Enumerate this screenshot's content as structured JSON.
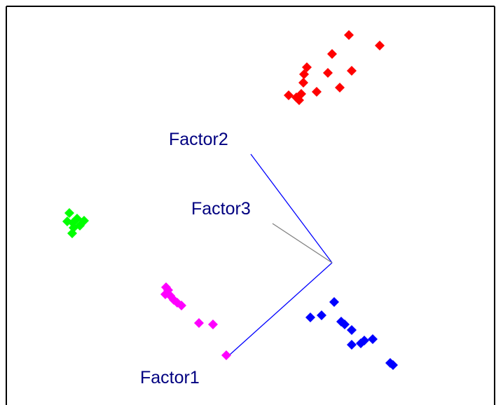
{
  "chart_data": {
    "type": "scatter",
    "title": "",
    "projection": "3D factor-space scatter (orthographic view)",
    "origin_label": "",
    "axes": [
      {
        "name": "Factor1",
        "color": "#0000ff",
        "label_color": "#000080"
      },
      {
        "name": "Factor2",
        "color": "#0000ff",
        "label_color": "#000080"
      },
      {
        "name": "Factor3",
        "color": "#808080",
        "label_color": "#000080"
      }
    ],
    "grid": false,
    "legend": "none",
    "series": [
      {
        "color": "#ff0000",
        "points": [
          [
            498,
            50
          ],
          [
            542,
            65
          ],
          [
            474,
            77
          ],
          [
            438,
            96
          ],
          [
            468,
            104
          ],
          [
            502,
            101
          ],
          [
            434,
            106
          ],
          [
            433,
            118
          ],
          [
            485,
            125
          ],
          [
            452,
            131
          ],
          [
            412,
            136
          ],
          [
            430,
            134
          ],
          [
            427,
            143
          ],
          [
            423,
            139
          ]
        ]
      },
      {
        "color": "#00ff00",
        "points": [
          [
            99,
            304
          ],
          [
            110,
            312
          ],
          [
            120,
            315
          ],
          [
            96,
            316
          ],
          [
            104,
            318
          ],
          [
            114,
            322
          ],
          [
            105,
            325
          ],
          [
            103,
            333
          ]
        ]
      },
      {
        "color": "#ff00ff",
        "points": [
          [
            237,
            410
          ],
          [
            240,
            414
          ],
          [
            236,
            420
          ],
          [
            243,
            422
          ],
          [
            248,
            428
          ],
          [
            253,
            432
          ],
          [
            259,
            436
          ],
          [
            284,
            461
          ],
          [
            304,
            463
          ],
          [
            323,
            507
          ]
        ]
      },
      {
        "color": "#0000ff",
        "points": [
          [
            477,
            431
          ],
          [
            459,
            450
          ],
          [
            443,
            453
          ],
          [
            487,
            459
          ],
          [
            492,
            463
          ],
          [
            502,
            471
          ],
          [
            520,
            486
          ],
          [
            532,
            484
          ],
          [
            515,
            490
          ],
          [
            502,
            492
          ],
          [
            557,
            518
          ],
          [
            561,
            521
          ]
        ]
      }
    ]
  }
}
